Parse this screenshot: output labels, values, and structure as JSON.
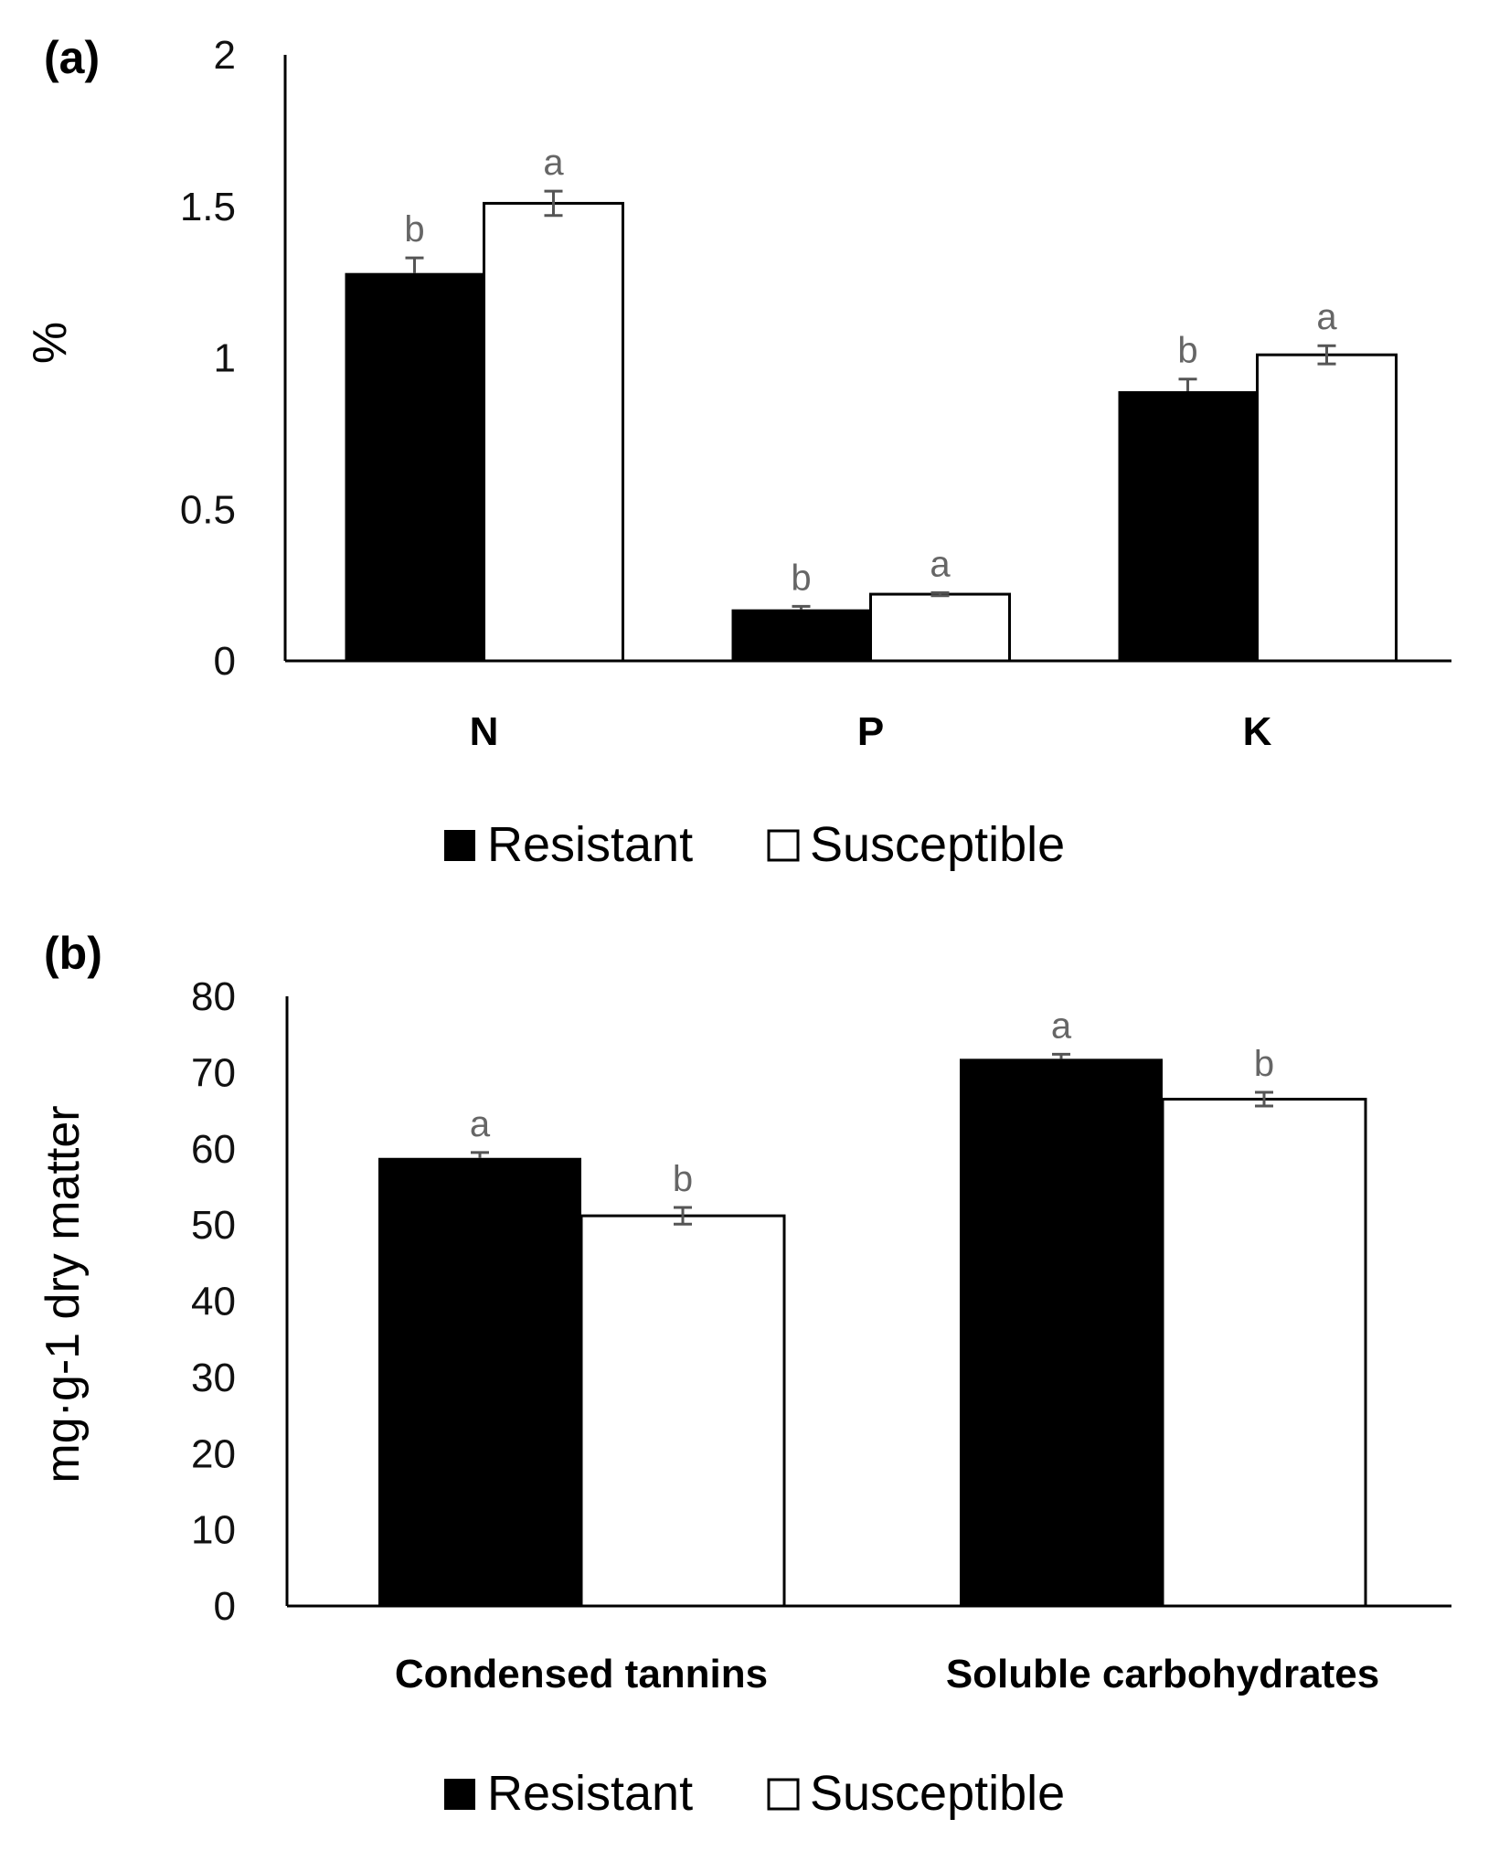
{
  "chart_data": [
    {
      "panel": "(a)",
      "type": "bar",
      "ylabel": "%",
      "xlabel": "",
      "ylim": [
        0,
        2
      ],
      "yticks": [
        "0",
        "0.5",
        "1",
        "1.5",
        "2"
      ],
      "ytick_values": [
        0,
        0.5,
        1,
        1.5,
        2
      ],
      "categories": [
        "N",
        "P",
        "K"
      ],
      "series": [
        {
          "name": "Resistant",
          "color": "#000000",
          "values": [
            1.28,
            0.17,
            0.89
          ],
          "errors": [
            0.05,
            0.01,
            0.04
          ],
          "letters": [
            "b",
            "b",
            "b"
          ]
        },
        {
          "name": "Susceptible",
          "color": "#ffffff",
          "values": [
            1.51,
            0.22,
            1.01
          ],
          "errors": [
            0.04,
            0.005,
            0.03
          ],
          "letters": [
            "a",
            "a",
            "a"
          ]
        }
      ],
      "legend": [
        "Resistant",
        "Susceptible"
      ]
    },
    {
      "panel": "(b)",
      "type": "bar",
      "ylabel": "mg·g-1 dry matter",
      "xlabel": "",
      "ylim": [
        0,
        80
      ],
      "yticks": [
        "0",
        "10",
        "20",
        "30",
        "40",
        "50",
        "60",
        "70",
        "80"
      ],
      "ytick_values": [
        0,
        10,
        20,
        30,
        40,
        50,
        60,
        70,
        80
      ],
      "categories": [
        "Condensed tannins",
        "Soluble carbohydrates"
      ],
      "series": [
        {
          "name": "Resistant",
          "color": "#000000",
          "values": [
            58.8,
            71.8
          ],
          "errors": [
            0.7,
            0.6
          ],
          "letters": [
            "a",
            "a"
          ]
        },
        {
          "name": "Susceptible",
          "color": "#ffffff",
          "values": [
            51.2,
            66.5
          ],
          "errors": [
            1.1,
            0.9
          ],
          "letters": [
            "b",
            "b"
          ]
        }
      ],
      "legend": [
        "Resistant",
        "Susceptible"
      ]
    }
  ]
}
